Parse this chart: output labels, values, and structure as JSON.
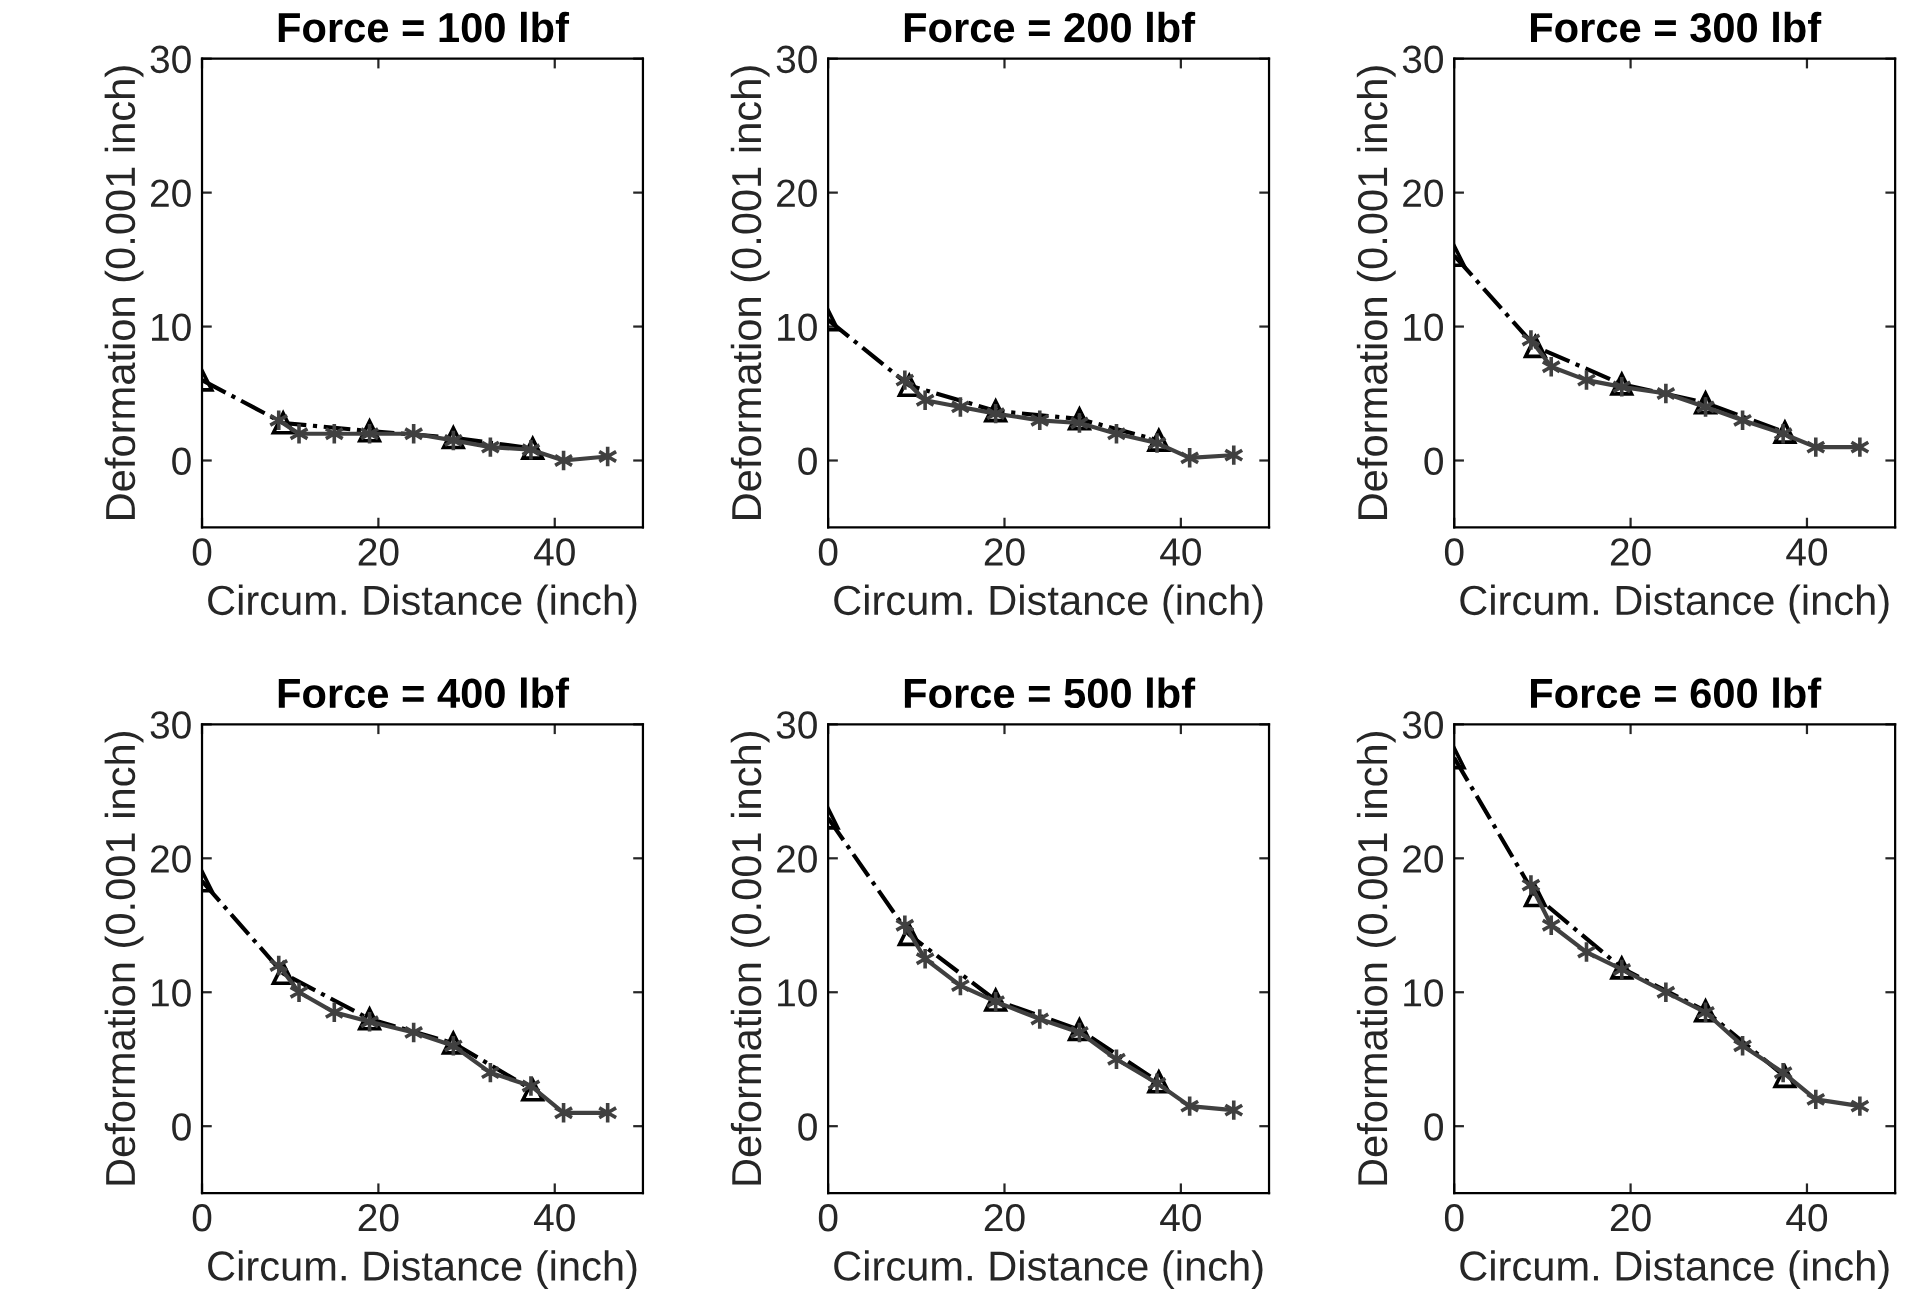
{
  "chart_data": [
    {
      "type": "line",
      "title": "Force = 100 lbf",
      "xlabel": "Circum. Distance (inch)",
      "ylabel": "Deformation (0.001 inch)",
      "xlim": [
        0,
        50
      ],
      "ylim": [
        -5,
        30
      ],
      "xticks": [
        0,
        20,
        40
      ],
      "yticks": [
        0,
        10,
        20,
        30
      ],
      "grid": false,
      "series": [
        {
          "color": "#404040",
          "marker": "cross",
          "line_style": "solid",
          "x": [
            8.7,
            11,
            15,
            19,
            24,
            28.5,
            32.7,
            37.3,
            41,
            46
          ],
          "values": [
            3,
            2,
            2,
            2,
            2,
            1.5,
            1,
            0.8,
            0,
            0.3
          ]
        },
        {
          "color": "#000000",
          "marker": "triangle",
          "line_style": "dashdot",
          "x": [
            0,
            9.2,
            19,
            28.5,
            37.5
          ],
          "values": [
            6,
            2.8,
            2.2,
            1.7,
            0.9
          ]
        }
      ]
    },
    {
      "type": "line",
      "title": "Force = 200 lbf",
      "xlabel": "Circum. Distance (inch)",
      "ylabel": "Deformation (0.001 inch)",
      "xlim": [
        0,
        50
      ],
      "ylim": [
        -5,
        30
      ],
      "xticks": [
        0,
        20,
        40
      ],
      "yticks": [
        0,
        10,
        20,
        30
      ],
      "grid": false,
      "series": [
        {
          "color": "#404040",
          "marker": "cross",
          "line_style": "solid",
          "x": [
            8.7,
            11,
            15,
            19,
            24,
            28.5,
            32.7,
            37.3,
            41,
            46
          ],
          "values": [
            6,
            4.5,
            4,
            3.5,
            3,
            2.8,
            2,
            1.3,
            0.2,
            0.4
          ]
        },
        {
          "color": "#000000",
          "marker": "triangle",
          "line_style": "dashdot",
          "x": [
            0,
            9.2,
            19,
            28.5,
            37.5
          ],
          "values": [
            10.5,
            5.6,
            3.7,
            3.1,
            1.5
          ]
        }
      ]
    },
    {
      "type": "line",
      "title": "Force = 300 lbf",
      "xlabel": "Circum. Distance (inch)",
      "ylabel": "Deformation (0.001 inch)",
      "xlim": [
        0,
        50
      ],
      "ylim": [
        -5,
        30
      ],
      "xticks": [
        0,
        20,
        40
      ],
      "yticks": [
        0,
        10,
        20,
        30
      ],
      "grid": false,
      "series": [
        {
          "color": "#404040",
          "marker": "cross",
          "line_style": "solid",
          "x": [
            8.7,
            11,
            15,
            19,
            24,
            28.5,
            32.7,
            37.3,
            41,
            46
          ],
          "values": [
            9,
            7,
            6,
            5.5,
            5,
            4,
            3,
            2,
            1,
            1
          ]
        },
        {
          "color": "#000000",
          "marker": "triangle",
          "line_style": "dashdot",
          "x": [
            0,
            9.2,
            19,
            28.5,
            37.5
          ],
          "values": [
            15.3,
            8.5,
            5.7,
            4.3,
            2.1
          ]
        }
      ]
    },
    {
      "type": "line",
      "title": "Force = 400 lbf",
      "xlabel": "Circum. Distance (inch)",
      "ylabel": "Deformation (0.001 inch)",
      "xlim": [
        0,
        50
      ],
      "ylim": [
        -5,
        30
      ],
      "xticks": [
        0,
        20,
        40
      ],
      "yticks": [
        0,
        10,
        20,
        30
      ],
      "grid": false,
      "series": [
        {
          "color": "#404040",
          "marker": "cross",
          "line_style": "solid",
          "x": [
            8.7,
            11,
            15,
            19,
            24,
            28.5,
            32.7,
            37.3,
            41,
            46
          ],
          "values": [
            12,
            10,
            8.5,
            7.8,
            7,
            6,
            4,
            3,
            1,
            1
          ]
        },
        {
          "color": "#000000",
          "marker": "triangle",
          "line_style": "dashdot",
          "x": [
            0,
            9.2,
            19,
            28.5,
            37.5
          ],
          "values": [
            18.3,
            11.4,
            8,
            6.2,
            2.7
          ]
        }
      ]
    },
    {
      "type": "line",
      "title": "Force = 500 lbf",
      "xlabel": "Circum. Distance (inch)",
      "ylabel": "Deformation (0.001 inch)",
      "xlim": [
        0,
        50
      ],
      "ylim": [
        -5,
        30
      ],
      "xticks": [
        0,
        20,
        40
      ],
      "yticks": [
        0,
        10,
        20,
        30
      ],
      "grid": false,
      "series": [
        {
          "color": "#404040",
          "marker": "cross",
          "line_style": "solid",
          "x": [
            8.7,
            11,
            15,
            19,
            24,
            28.5,
            32.7,
            37.3,
            41,
            46
          ],
          "values": [
            15,
            12.5,
            10.5,
            9.3,
            8,
            7,
            5,
            3.2,
            1.5,
            1.2
          ]
        },
        {
          "color": "#000000",
          "marker": "triangle",
          "line_style": "dashdot",
          "x": [
            0,
            9.2,
            19,
            28.5,
            37.5
          ],
          "values": [
            23,
            14.3,
            9.4,
            7.2,
            3.3
          ]
        }
      ]
    },
    {
      "type": "line",
      "title": "Force = 600 lbf",
      "xlabel": "Circum. Distance (inch)",
      "ylabel": "Deformation (0.001 inch)",
      "xlim": [
        0,
        50
      ],
      "ylim": [
        -5,
        30
      ],
      "xticks": [
        0,
        20,
        40
      ],
      "yticks": [
        0,
        10,
        20,
        30
      ],
      "grid": false,
      "series": [
        {
          "color": "#404040",
          "marker": "cross",
          "line_style": "solid",
          "x": [
            8.7,
            11,
            15,
            19,
            24,
            28.5,
            32.7,
            37.3,
            41,
            46
          ],
          "values": [
            18,
            15,
            13,
            11.7,
            10,
            8.5,
            6,
            4,
            2,
            1.5
          ]
        },
        {
          "color": "#000000",
          "marker": "triangle",
          "line_style": "dashdot",
          "x": [
            0,
            9.2,
            19,
            28.5,
            37.5
          ],
          "values": [
            27.5,
            17.2,
            11.8,
            8.6,
            3.7
          ]
        }
      ]
    }
  ]
}
